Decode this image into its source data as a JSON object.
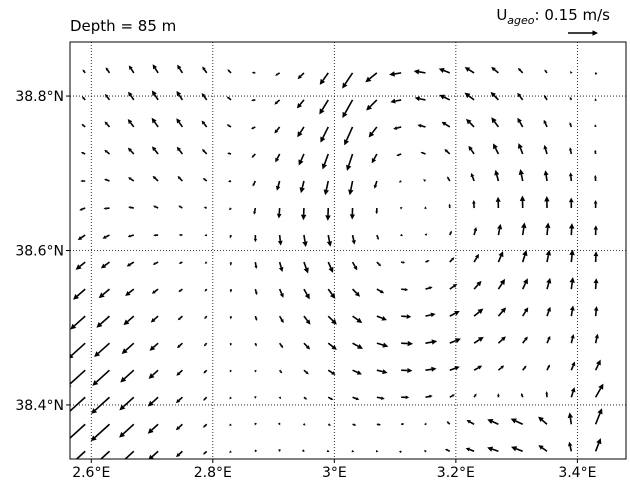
{
  "chart_data": {
    "type": "quiver",
    "title": "Depth = 85 m",
    "reference_key": {
      "symbol_main": "U",
      "symbol_sub": "ageo",
      "label_rest": ": 0.15 m/s",
      "magnitude": 0.15,
      "unit": "m/s"
    },
    "x_ticks": [
      {
        "value": 2.6,
        "label": "2.6°E"
      },
      {
        "value": 2.8,
        "label": "2.8°E"
      },
      {
        "value": 3.0,
        "label": "3°E"
      },
      {
        "value": 3.2,
        "label": "3.2°E"
      },
      {
        "value": 3.4,
        "label": "3.4°E"
      }
    ],
    "y_ticks": [
      {
        "value": 38.4,
        "label": "38.4°N"
      },
      {
        "value": 38.6,
        "label": "38.6°N"
      },
      {
        "value": 38.8,
        "label": "38.8°N"
      }
    ],
    "xlim": [
      2.565,
      3.48
    ],
    "ylim": [
      38.33,
      38.87
    ],
    "grid": true,
    "grid_style": "dotted",
    "field": {
      "lon_start": 2.59,
      "lon_step": 0.04,
      "lon_count": 22,
      "lat_start": 38.34,
      "lat_step": 0.035,
      "lat_count": 15,
      "approximate": true
    }
  }
}
